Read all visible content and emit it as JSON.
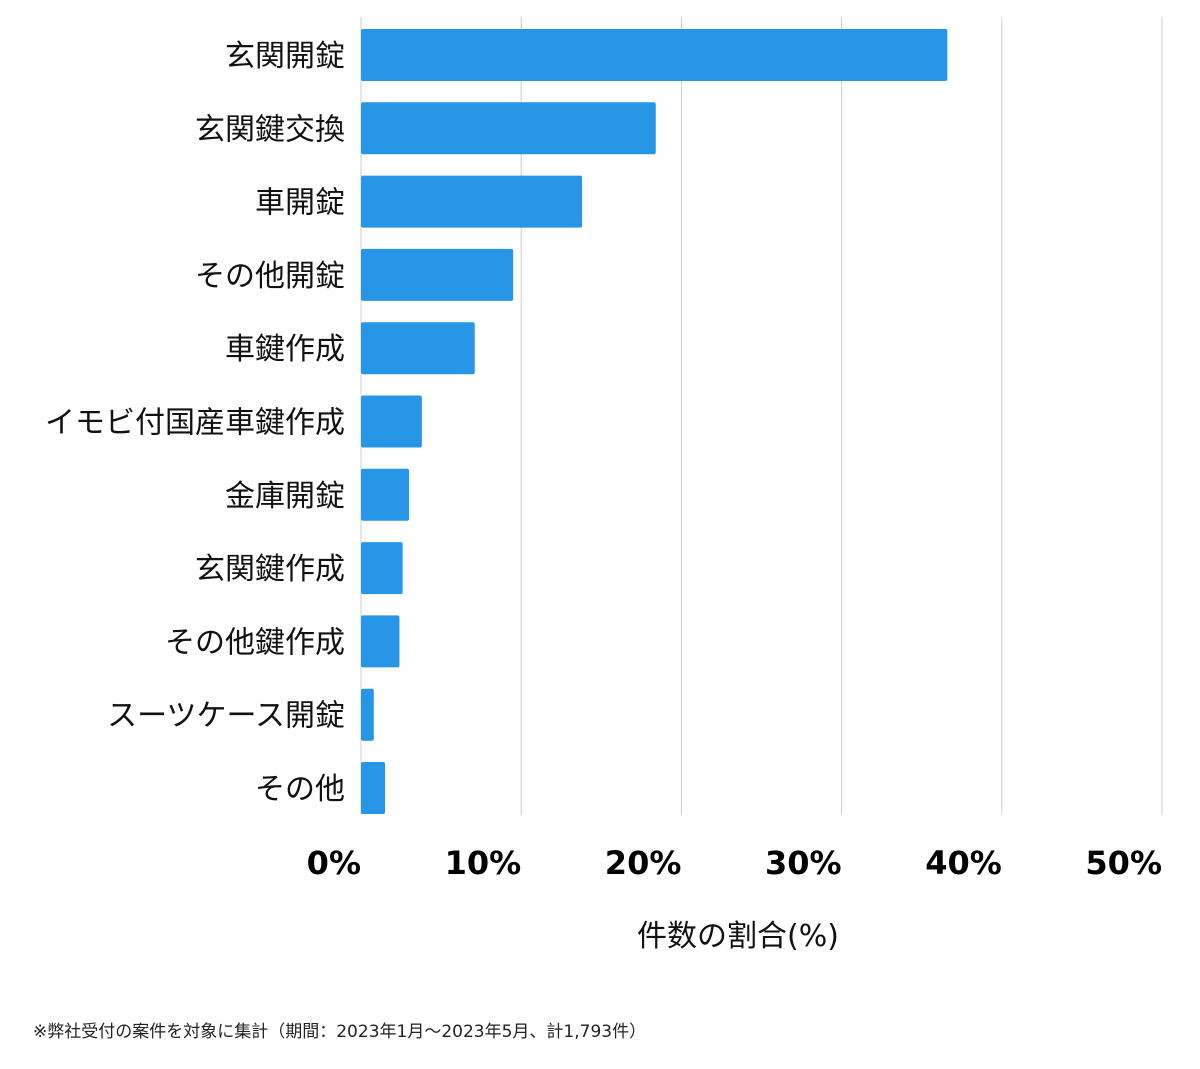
{
  "chart_data": {
    "type": "bar",
    "orientation": "horizontal",
    "categories": [
      "玄関開錠",
      "玄関鍵交換",
      "車開錠",
      "その他開錠",
      "車鍵作成",
      "イモビ付国産車鍵作成",
      "金庫開錠",
      "玄関鍵作成",
      "その他鍵作成",
      "スーツケース開錠",
      "その他"
    ],
    "values": [
      36.6,
      18.4,
      13.8,
      9.5,
      7.1,
      3.8,
      3.0,
      2.6,
      2.4,
      0.8,
      1.5
    ],
    "xlim": [
      0,
      50
    ],
    "x_ticks": [
      0,
      10,
      20,
      30,
      40,
      50
    ],
    "x_tick_labels": [
      "0%",
      "10%",
      "20%",
      "30%",
      "40%",
      "50%"
    ],
    "xlabel": "件数の割合(%)",
    "ylabel": "",
    "title": "",
    "grid": "vertical",
    "legend": "none",
    "bar_color": "#2896e6"
  },
  "footnote": "※弊社受付の案件を対象に集計（期間：2023年1月〜2023年5月、計1,793件）"
}
